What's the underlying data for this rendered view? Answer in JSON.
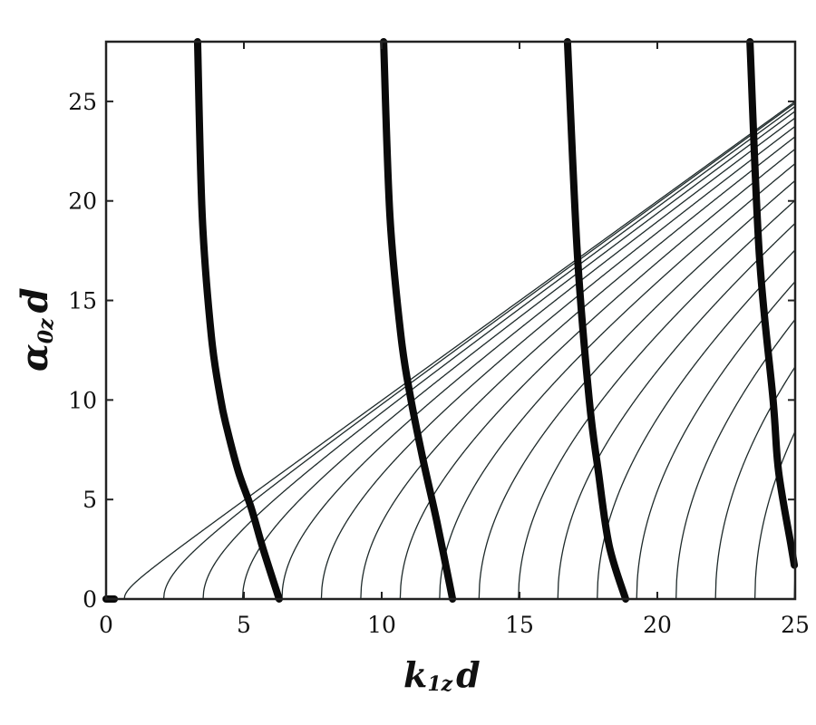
{
  "chart_data": {
    "type": "line",
    "title": "",
    "xlabel": {
      "main": "k",
      "sub": "1z",
      "tail": "d"
    },
    "ylabel": {
      "main": "α",
      "sub": "0z",
      "tail": "d"
    },
    "xlim": [
      0,
      25
    ],
    "ylim": [
      0,
      28
    ],
    "xticks": [
      "0",
      "5",
      "10",
      "15",
      "20",
      "25"
    ],
    "yticks": [
      "0",
      "5",
      "10",
      "15",
      "20",
      "25"
    ],
    "grid": false,
    "legend": "none",
    "colors": {
      "thin": "#1e2a2a",
      "thick": "#0a0a0a",
      "axis": "#222222"
    },
    "thin_family": {
      "description_formula": "α = sqrt(k^2 - c^2)",
      "c_values": [
        0.66,
        2.09,
        3.52,
        4.95,
        6.38,
        7.81,
        9.24,
        10.67,
        12.1,
        13.53,
        14.96,
        16.39,
        17.82,
        19.25,
        20.68,
        22.11,
        23.54,
        24.97
      ]
    },
    "series": [
      {
        "x": [
          3.32,
          3.49,
          3.82,
          4.15,
          4.38,
          4.8,
          5.26,
          5.7,
          6.28
        ],
        "y": [
          28,
          19.2,
          13.2,
          10.1,
          8.6,
          6.4,
          4.6,
          2.5,
          0
        ]
      },
      {
        "x": [
          10.07,
          10.3,
          10.7,
          11.05,
          11.5,
          12.0,
          12.57
        ],
        "y": [
          28,
          19.2,
          13.2,
          10.1,
          7.0,
          3.9,
          0
        ]
      },
      {
        "x": [
          16.74,
          17.1,
          17.53,
          17.86,
          18.25,
          18.85
        ],
        "y": [
          28,
          17.3,
          10.0,
          6.4,
          2.7,
          0
        ]
      },
      {
        "x": [
          23.36,
          23.7,
          24.2,
          24.4,
          24.85,
          24.97
        ],
        "y": [
          28,
          17.3,
          10.0,
          6.4,
          2.7,
          1.7
        ]
      },
      {
        "x": [
          0,
          0.3
        ],
        "y": [
          0,
          0
        ]
      }
    ]
  }
}
